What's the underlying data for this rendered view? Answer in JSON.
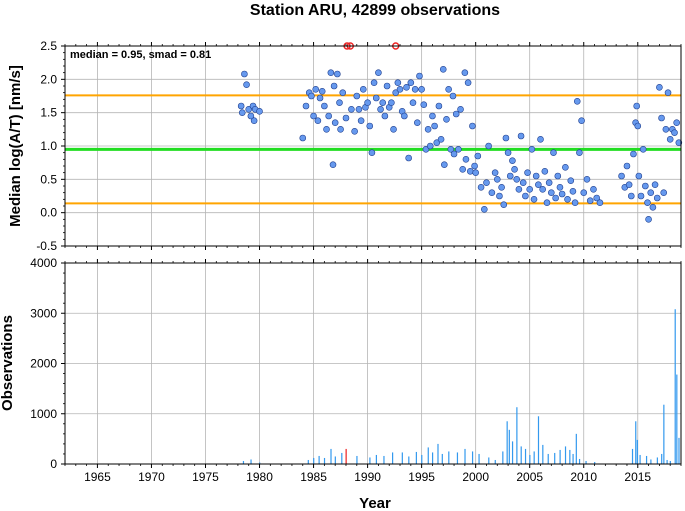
{
  "chart_data": [
    {
      "type": "scatter",
      "title": "Station ARU, 42899 observations",
      "xlabel": "",
      "ylabel": "Median log(A/T) [nm/s]",
      "annotation": "median = 0.95, smad = 0.81",
      "xlim": [
        1962,
        2019
      ],
      "ylim": [
        -0.5,
        2.5
      ],
      "xticks": [
        "1965",
        "1970",
        "1975",
        "1980",
        "1985",
        "1990",
        "1995",
        "2000",
        "2005",
        "2010",
        "2015"
      ],
      "yticks": [
        "-0.5",
        "0.0",
        "0.5",
        "1.0",
        "1.5",
        "2.0",
        "2.5"
      ],
      "grid": true,
      "reference_lines": [
        {
          "label": "median",
          "value": 0.95,
          "color": "#22dd22"
        },
        {
          "label": "median + smad",
          "value": 1.76,
          "color": "#ffa500"
        },
        {
          "label": "median - smad",
          "value": 0.14,
          "color": "#ffa500"
        }
      ],
      "marker_color": "#6699ee",
      "outlier_color": "#ee2222",
      "points": [
        [
          1978.3,
          1.6
        ],
        [
          1978.4,
          1.5
        ],
        [
          1978.6,
          2.08
        ],
        [
          1978.8,
          1.92
        ],
        [
          1979.0,
          1.55
        ],
        [
          1979.2,
          1.45
        ],
        [
          1979.4,
          1.6
        ],
        [
          1979.5,
          1.38
        ],
        [
          1979.6,
          1.55
        ],
        [
          1980.0,
          1.52
        ],
        [
          1984.0,
          1.12
        ],
        [
          1984.3,
          1.6
        ],
        [
          1984.6,
          1.8
        ],
        [
          1984.8,
          1.75
        ],
        [
          1985.0,
          1.45
        ],
        [
          1985.2,
          1.85
        ],
        [
          1985.4,
          1.38
        ],
        [
          1985.6,
          1.72
        ],
        [
          1985.8,
          1.82
        ],
        [
          1986.0,
          1.6
        ],
        [
          1986.2,
          1.25
        ],
        [
          1986.4,
          1.45
        ],
        [
          1986.6,
          2.1
        ],
        [
          1986.8,
          0.72
        ],
        [
          1986.9,
          1.9
        ],
        [
          1987.0,
          1.35
        ],
        [
          1987.2,
          2.08
        ],
        [
          1987.4,
          1.65
        ],
        [
          1987.5,
          1.25
        ],
        [
          1987.7,
          1.8
        ],
        [
          1988.0,
          1.42
        ],
        [
          1988.5,
          1.55
        ],
        [
          1988.8,
          1.22
        ],
        [
          1989.0,
          1.75
        ],
        [
          1989.2,
          1.55
        ],
        [
          1989.4,
          1.38
        ],
        [
          1989.6,
          1.85
        ],
        [
          1989.8,
          1.58
        ],
        [
          1990.0,
          1.65
        ],
        [
          1990.2,
          1.3
        ],
        [
          1990.4,
          0.9
        ],
        [
          1990.6,
          1.95
        ],
        [
          1990.8,
          1.72
        ],
        [
          1991.0,
          2.1
        ],
        [
          1991.2,
          1.55
        ],
        [
          1991.4,
          1.65
        ],
        [
          1991.6,
          1.45
        ],
        [
          1991.8,
          1.9
        ],
        [
          1992.0,
          1.58
        ],
        [
          1992.2,
          1.65
        ],
        [
          1992.4,
          1.25
        ],
        [
          1992.6,
          1.8
        ],
        [
          1992.8,
          1.95
        ],
        [
          1993.0,
          1.85
        ],
        [
          1993.2,
          1.52
        ],
        [
          1993.4,
          1.45
        ],
        [
          1993.6,
          1.88
        ],
        [
          1993.8,
          0.82
        ],
        [
          1994.0,
          1.95
        ],
        [
          1994.2,
          1.65
        ],
        [
          1994.4,
          1.85
        ],
        [
          1994.6,
          1.35
        ],
        [
          1994.8,
          2.05
        ],
        [
          1995.0,
          1.85
        ],
        [
          1995.2,
          1.62
        ],
        [
          1995.4,
          0.95
        ],
        [
          1995.6,
          1.25
        ],
        [
          1995.8,
          1.0
        ],
        [
          1996.0,
          1.45
        ],
        [
          1996.2,
          1.3
        ],
        [
          1996.4,
          1.05
        ],
        [
          1996.6,
          1.6
        ],
        [
          1996.8,
          1.1
        ],
        [
          1997.0,
          2.15
        ],
        [
          1997.1,
          0.72
        ],
        [
          1997.3,
          1.4
        ],
        [
          1997.5,
          1.85
        ],
        [
          1997.7,
          0.95
        ],
        [
          1997.9,
          1.75
        ],
        [
          1998.0,
          0.88
        ],
        [
          1998.2,
          1.48
        ],
        [
          1998.4,
          0.95
        ],
        [
          1998.6,
          1.55
        ],
        [
          1998.8,
          0.65
        ],
        [
          1999.0,
          2.1
        ],
        [
          1999.1,
          0.8
        ],
        [
          1999.3,
          1.95
        ],
        [
          1999.5,
          0.62
        ],
        [
          1999.7,
          1.3
        ],
        [
          1999.9,
          0.7
        ],
        [
          2000.0,
          0.6
        ],
        [
          2000.2,
          0.85
        ],
        [
          2000.5,
          0.38
        ],
        [
          2000.8,
          0.05
        ],
        [
          2001.0,
          0.45
        ],
        [
          2001.2,
          1.0
        ],
        [
          2001.5,
          0.3
        ],
        [
          2001.8,
          0.6
        ],
        [
          2002.0,
          0.5
        ],
        [
          2002.2,
          0.25
        ],
        [
          2002.4,
          0.38
        ],
        [
          2002.6,
          0.12
        ],
        [
          2002.8,
          1.12
        ],
        [
          2003.0,
          0.9
        ],
        [
          2003.2,
          0.55
        ],
        [
          2003.4,
          0.78
        ],
        [
          2003.6,
          0.65
        ],
        [
          2003.8,
          0.5
        ],
        [
          2004.0,
          0.35
        ],
        [
          2004.2,
          1.15
        ],
        [
          2004.4,
          0.45
        ],
        [
          2004.6,
          0.25
        ],
        [
          2004.8,
          0.6
        ],
        [
          2005.0,
          0.35
        ],
        [
          2005.2,
          0.95
        ],
        [
          2005.4,
          0.2
        ],
        [
          2005.6,
          0.55
        ],
        [
          2005.8,
          0.42
        ],
        [
          2006.0,
          1.1
        ],
        [
          2006.2,
          0.35
        ],
        [
          2006.4,
          0.62
        ],
        [
          2006.6,
          0.15
        ],
        [
          2006.8,
          0.45
        ],
        [
          2007.0,
          0.3
        ],
        [
          2007.2,
          0.9
        ],
        [
          2007.4,
          0.22
        ],
        [
          2007.6,
          0.55
        ],
        [
          2007.8,
          0.38
        ],
        [
          2008.0,
          0.28
        ],
        [
          2008.3,
          0.68
        ],
        [
          2008.5,
          0.2
        ],
        [
          2008.8,
          0.48
        ],
        [
          2009.0,
          0.32
        ],
        [
          2009.2,
          0.15
        ],
        [
          2009.4,
          1.67
        ],
        [
          2009.6,
          0.9
        ],
        [
          2009.8,
          1.38
        ],
        [
          2010.0,
          0.3
        ],
        [
          2010.3,
          0.5
        ],
        [
          2010.6,
          0.18
        ],
        [
          2010.9,
          0.35
        ],
        [
          2011.2,
          0.22
        ],
        [
          2011.5,
          0.15
        ],
        [
          2013.5,
          0.55
        ],
        [
          2013.8,
          0.38
        ],
        [
          2014.0,
          0.7
        ],
        [
          2014.2,
          0.42
        ],
        [
          2014.4,
          0.25
        ],
        [
          2014.6,
          0.88
        ],
        [
          2014.8,
          1.35
        ],
        [
          2014.9,
          1.6
        ],
        [
          2015.0,
          1.3
        ],
        [
          2015.1,
          0.55
        ],
        [
          2015.3,
          0.25
        ],
        [
          2015.5,
          0.95
        ],
        [
          2015.7,
          0.4
        ],
        [
          2015.9,
          0.15
        ],
        [
          2016.0,
          -0.1
        ],
        [
          2016.2,
          0.3
        ],
        [
          2016.4,
          0.08
        ],
        [
          2016.6,
          0.42
        ],
        [
          2016.8,
          0.22
        ],
        [
          2017.0,
          1.88
        ],
        [
          2017.2,
          1.42
        ],
        [
          2017.4,
          0.3
        ],
        [
          2017.6,
          1.25
        ],
        [
          2017.8,
          1.8
        ],
        [
          2018.0,
          1.1
        ],
        [
          2018.2,
          1.25
        ],
        [
          2018.4,
          1.2
        ],
        [
          2018.6,
          1.35
        ],
        [
          2018.8,
          1.05
        ]
      ],
      "outliers": [
        [
          1988.1,
          2.52
        ],
        [
          1988.4,
          2.5
        ],
        [
          1992.6,
          2.5
        ]
      ]
    },
    {
      "type": "bar",
      "title": "",
      "xlabel": "Year",
      "ylabel": "Observations",
      "xlim": [
        1962,
        2019
      ],
      "ylim": [
        0,
        4000
      ],
      "xticks": [
        "1965",
        "1970",
        "1975",
        "1980",
        "1985",
        "1990",
        "1995",
        "2000",
        "2005",
        "2010",
        "2015"
      ],
      "yticks": [
        "0",
        "1000",
        "2000",
        "3000",
        "4000"
      ],
      "grid": true,
      "bar_color": "#3399ee",
      "outlier_bar_color": "#ee2222",
      "bars": [
        [
          1978.5,
          60
        ],
        [
          1979.2,
          90
        ],
        [
          1980.0,
          30
        ],
        [
          1984.5,
          80
        ],
        [
          1985.0,
          120
        ],
        [
          1985.5,
          160
        ],
        [
          1986.0,
          120
        ],
        [
          1986.6,
          300
        ],
        [
          1987.0,
          150
        ],
        [
          1987.6,
          220
        ],
        [
          1989.0,
          160
        ],
        [
          1990.2,
          130
        ],
        [
          1990.8,
          180
        ],
        [
          1991.5,
          160
        ],
        [
          1992.3,
          230
        ],
        [
          1993.2,
          230
        ],
        [
          1993.8,
          150
        ],
        [
          1994.5,
          240
        ],
        [
          1995.0,
          180
        ],
        [
          1995.6,
          330
        ],
        [
          1996.0,
          230
        ],
        [
          1996.5,
          400
        ],
        [
          1996.9,
          200
        ],
        [
          1997.5,
          250
        ],
        [
          1998.3,
          230
        ],
        [
          1999.0,
          300
        ],
        [
          1999.7,
          250
        ],
        [
          2000.3,
          200
        ],
        [
          2001.2,
          130
        ],
        [
          2001.8,
          80
        ],
        [
          2002.5,
          250
        ],
        [
          2002.9,
          850
        ],
        [
          2003.1,
          680
        ],
        [
          2003.4,
          450
        ],
        [
          2003.8,
          1130
        ],
        [
          2004.2,
          350
        ],
        [
          2004.6,
          300
        ],
        [
          2005.0,
          180
        ],
        [
          2005.4,
          250
        ],
        [
          2005.8,
          950
        ],
        [
          2006.2,
          380
        ],
        [
          2006.7,
          200
        ],
        [
          2007.3,
          220
        ],
        [
          2007.8,
          280
        ],
        [
          2008.3,
          350
        ],
        [
          2008.7,
          280
        ],
        [
          2009.0,
          200
        ],
        [
          2009.3,
          600
        ],
        [
          2009.6,
          100
        ],
        [
          2010.2,
          60
        ],
        [
          2011.0,
          40
        ],
        [
          2014.5,
          300
        ],
        [
          2014.8,
          850
        ],
        [
          2014.95,
          480
        ],
        [
          2015.2,
          180
        ],
        [
          2015.8,
          160
        ],
        [
          2016.2,
          90
        ],
        [
          2016.8,
          130
        ],
        [
          2017.2,
          200
        ],
        [
          2017.4,
          1180
        ],
        [
          2017.7,
          80
        ],
        [
          2018.0,
          60
        ],
        [
          2018.45,
          3080
        ],
        [
          2018.6,
          1780
        ],
        [
          2018.8,
          520
        ]
      ],
      "outlier_bars": [
        [
          1988.0,
          300
        ]
      ]
    }
  ]
}
